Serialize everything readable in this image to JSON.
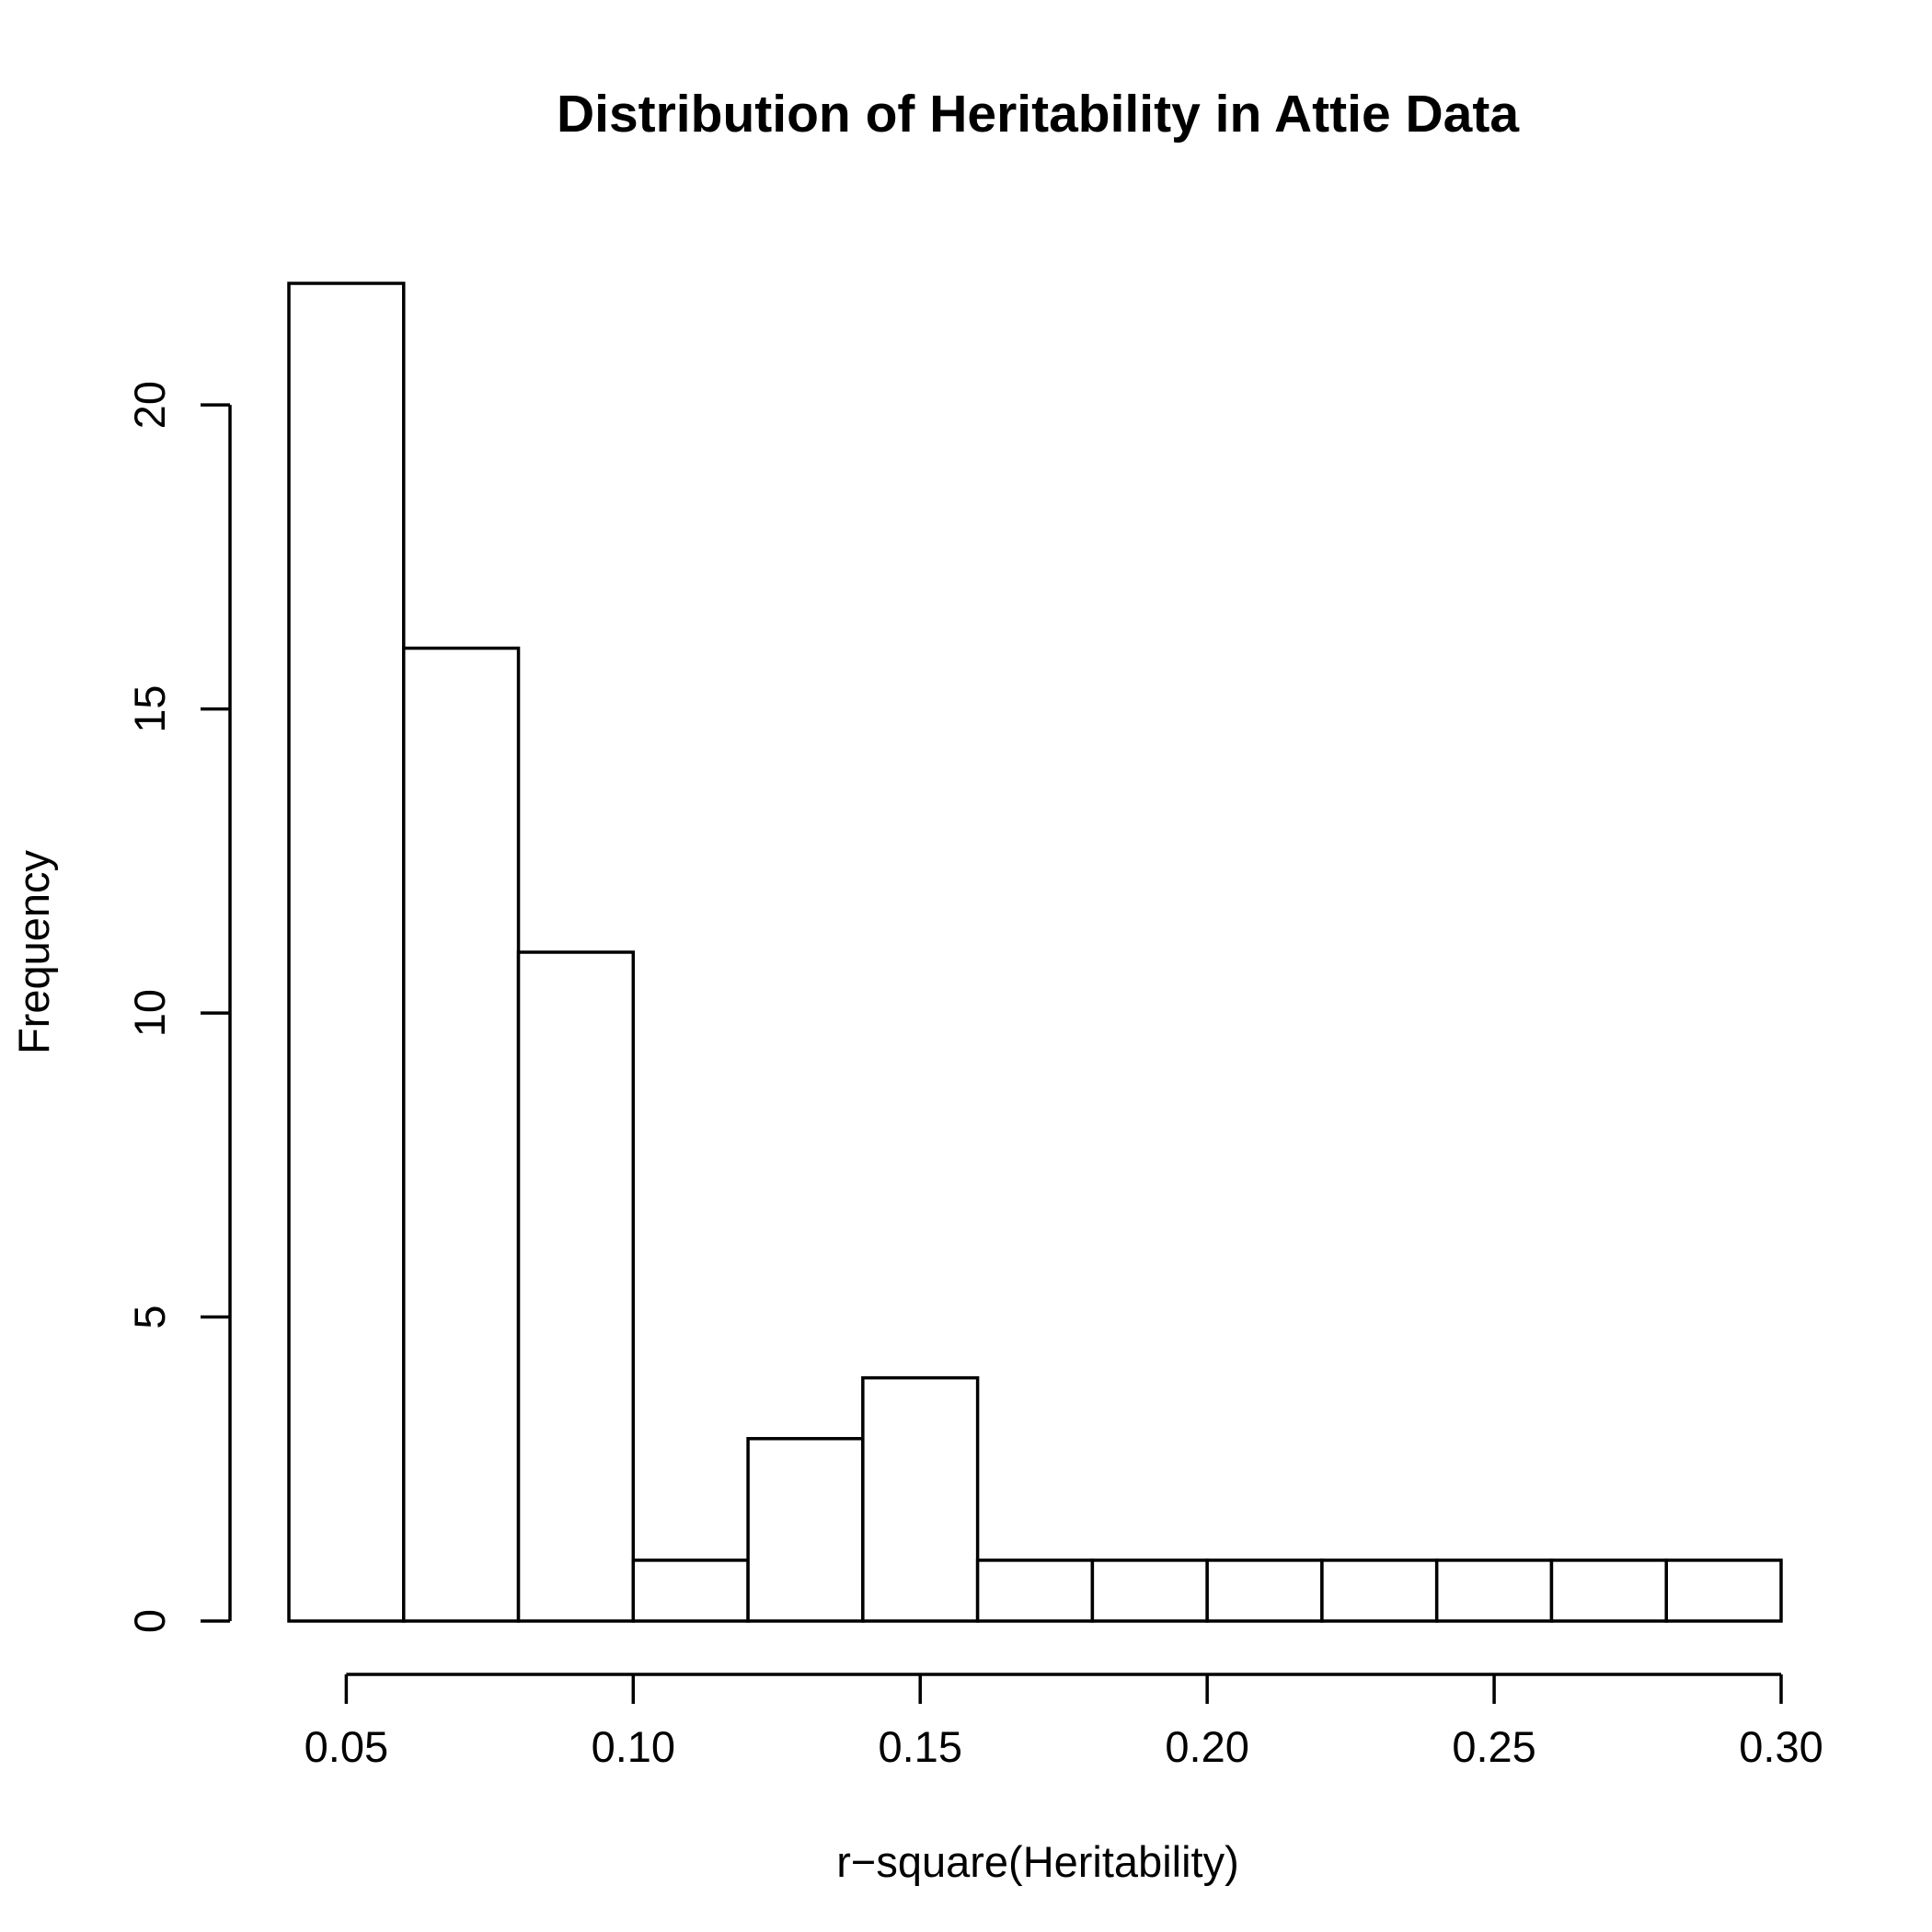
{
  "chart_data": {
    "type": "bar",
    "title": "Distribution of Heritability in Attie Data",
    "xlabel": "r−square(Heritability)",
    "ylabel": "Frequency",
    "bin_edges": [
      0.04,
      0.06,
      0.08,
      0.1,
      0.12,
      0.14,
      0.16,
      0.18,
      0.2,
      0.22,
      0.24,
      0.26,
      0.28,
      0.3
    ],
    "values": [
      22,
      16,
      11,
      1,
      3,
      4,
      1,
      1,
      1,
      1,
      1,
      1,
      1
    ],
    "xticks": [
      0.05,
      0.1,
      0.15,
      0.2,
      0.25,
      0.3
    ],
    "xtick_labels": [
      "0.05",
      "0.10",
      "0.15",
      "0.20",
      "0.25",
      "0.30"
    ],
    "yticks": [
      0,
      5,
      10,
      15,
      20
    ],
    "ytick_labels": [
      "0",
      "5",
      "10",
      "15",
      "20"
    ],
    "xlim": [
      0.04,
      0.3
    ],
    "ylim": [
      0,
      22
    ],
    "grid": false
  }
}
